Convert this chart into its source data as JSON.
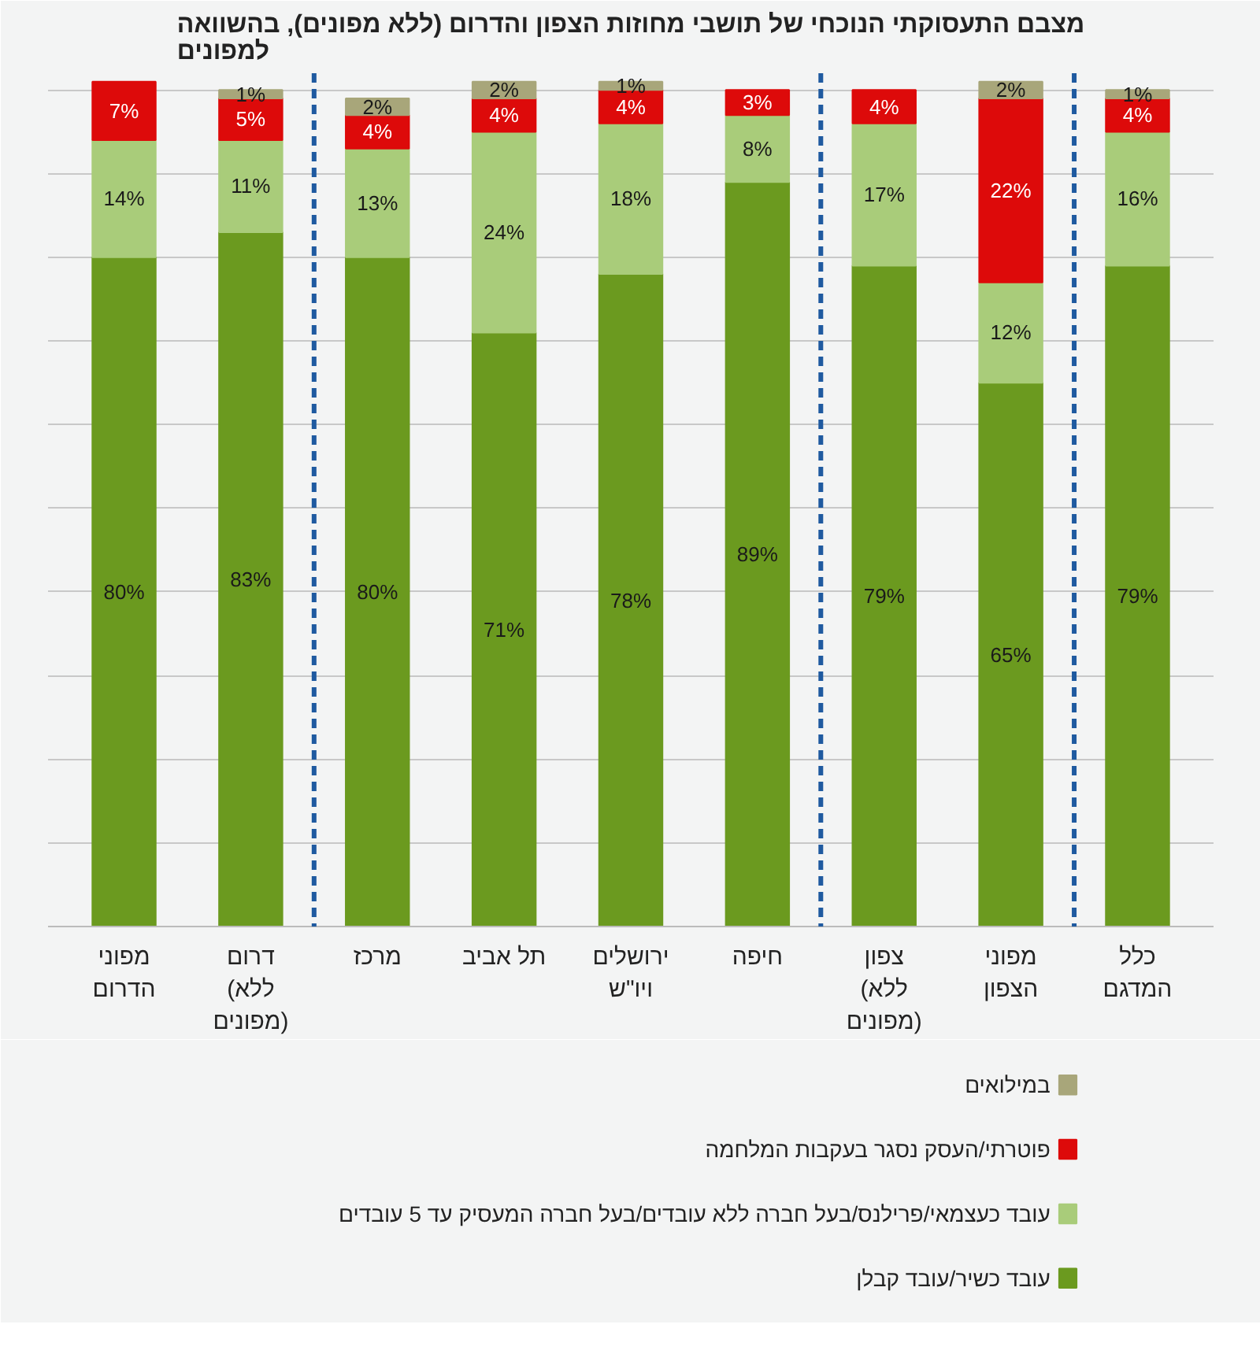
{
  "chart_data": {
    "type": "bar",
    "stacked": true,
    "title": "מצבם התעסוקתי הנוכחי של תושבי מחוזות הצפון והדרום (ללא מפונים), בהשוואה למפונים",
    "categories": [
      "מפוני הדרום",
      "דרום (ללא מפונים)",
      "מרכז",
      "תל אביב",
      "ירושלים ויו\"ש",
      "חיפה",
      "צפון (ללא מפונים)",
      "מפוני הצפון",
      "כלל המדגם"
    ],
    "series": [
      {
        "name": "עובד כשיר/עובד קבלן",
        "color": "#6b9a1f",
        "values": [
          80,
          83,
          80,
          71,
          78,
          89,
          79,
          65,
          79
        ],
        "value_labels": [
          "80%",
          "83%",
          "80%",
          "71%",
          "78%",
          "89%",
          "79%",
          "65%",
          "79%"
        ]
      },
      {
        "name": "עובד כעצמאי/פרילנס/בעל חברה ללא עובדים/בעל חברה המעסיק עד 5 עובדים",
        "color": "#a9cc7a",
        "values": [
          14,
          11,
          13,
          24,
          18,
          8,
          17,
          12,
          16
        ],
        "value_labels": [
          "14%",
          "11%",
          "13%",
          "24%",
          "18%",
          "8%",
          "17%",
          "12%",
          "16%"
        ]
      },
      {
        "name": "פוטרתי/העסק נסגר בעקבות המלחמה",
        "color": "#dd0a0a",
        "values": [
          7,
          5,
          4,
          4,
          4,
          3,
          4,
          22,
          4
        ],
        "value_labels": [
          "7%",
          "5%",
          "4%",
          "4%",
          "4%",
          "3%",
          "4%",
          "22%",
          "4%"
        ]
      },
      {
        "name": "במילואים",
        "color": "#a8a67a",
        "values": [
          null,
          1,
          2,
          2,
          1,
          null,
          null,
          2,
          1
        ],
        "value_labels": [
          null,
          "1%",
          "2%",
          "2%",
          "1%",
          null,
          null,
          "2%",
          "1%"
        ]
      }
    ],
    "ylim": [
      0,
      102
    ],
    "yticks": [
      {
        "value": 0,
        "label": null
      },
      {
        "value": 10,
        "label": null
      },
      {
        "value": 20,
        "label": null
      },
      {
        "value": 30,
        "label": null
      },
      {
        "value": 40,
        "label": null
      },
      {
        "value": 50,
        "label": null
      },
      {
        "value": 60,
        "label": null
      },
      {
        "value": 70,
        "label": null
      },
      {
        "value": 80,
        "label": null
      },
      {
        "value": 90,
        "label": null
      },
      {
        "value": 100,
        "label": null
      }
    ],
    "tick_labels": "x",
    "grid": "y",
    "legend": "bottom"
  }
}
